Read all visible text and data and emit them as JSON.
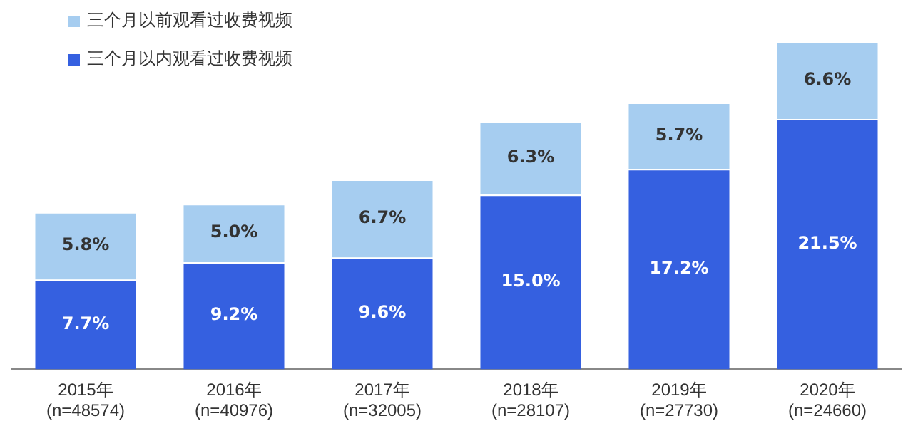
{
  "chart_data": {
    "type": "bar",
    "stacked": true,
    "legend": "top left",
    "grid": false,
    "categories": [
      "2015年\n(n=48574)",
      "2016年\n(n=40976)",
      "2017年\n(n=32005)",
      "2018年\n(n=28107)",
      "2019年\n(n=27730)",
      "2020年\n(n=24660)"
    ],
    "series": [
      {
        "name": "三个月以内观看过收费视频",
        "color": "#3560e0",
        "values": [
          7.7,
          9.2,
          9.6,
          15.0,
          17.2,
          21.5
        ],
        "value_labels": [
          "7.7%",
          "9.2%",
          "9.6%",
          "15.0%",
          "17.2%",
          "21.5%"
        ]
      },
      {
        "name": "三个月以前观看过收费视频",
        "color": "#a6cdf0",
        "values": [
          5.8,
          5.0,
          6.7,
          6.3,
          5.7,
          6.6
        ],
        "value_labels": [
          "5.8%",
          "5.0%",
          "6.7%",
          "6.3%",
          "5.7%",
          "6.6%"
        ]
      }
    ]
  }
}
